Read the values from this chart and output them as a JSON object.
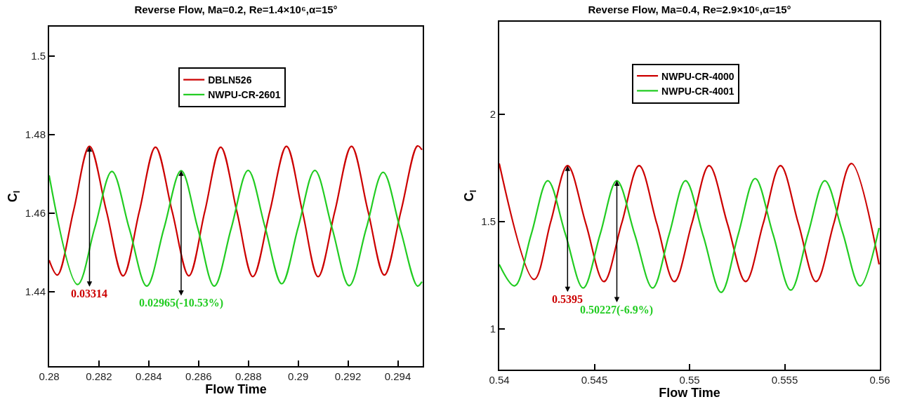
{
  "chart_data": [
    {
      "type": "line",
      "title": "Reverse Flow, Ma=0.2, Re=1.4×10⁶,α=15°",
      "xlabel": "Flow Time",
      "ylabel": "C$_{l}$",
      "legend": "top",
      "grid": false,
      "line_style": "solid",
      "marker": "none",
      "xlim": [
        0.28,
        0.295
      ],
      "xticks": [
        0.28,
        0.282,
        0.284,
        0.286,
        0.288,
        0.29,
        0.292,
        0.294
      ],
      "ylim": [
        1.421,
        1.5075
      ],
      "yticks": [
        1.44,
        1.46,
        1.48,
        1.5
      ],
      "series": [
        {
          "name": "DBLN526",
          "color": "#cc0000",
          "x": [
            0.28,
            0.28033,
            0.28098,
            0.28162,
            0.2823,
            0.28297,
            0.28362,
            0.28427,
            0.28494,
            0.28561,
            0.28625,
            0.28689,
            0.28754,
            0.28818,
            0.28886,
            0.28953,
            0.29017,
            0.2908,
            0.29147,
            0.29214,
            0.2928,
            0.29346,
            0.29413,
            0.29479,
            0.29497
          ],
          "values": [
            1.448,
            1.4442,
            1.4606,
            1.477,
            1.4605,
            1.444,
            1.4604,
            1.4768,
            1.4604,
            1.444,
            1.4604,
            1.4768,
            1.4603,
            1.4438,
            1.4604,
            1.477,
            1.4604,
            1.4438,
            1.4604,
            1.477,
            1.4606,
            1.4442,
            1.4606,
            1.4771,
            1.4761
          ]
        },
        {
          "name": "NWPU-CR-2601",
          "color": "#22cc22",
          "x": [
            0.28,
            0.28114,
            0.28183,
            0.28252,
            0.28322,
            0.28392,
            0.28461,
            0.2853,
            0.28597,
            0.28663,
            0.28731,
            0.28799,
            0.28867,
            0.28934,
            0.29,
            0.29067,
            0.29136,
            0.29205,
            0.29273,
            0.29341,
            0.2941,
            0.29479,
            0.29497
          ],
          "values": [
            1.4696,
            1.4418,
            1.4562,
            1.4706,
            1.456,
            1.4414,
            1.4561,
            1.4708,
            1.4561,
            1.4414,
            1.4561,
            1.4709,
            1.4564,
            1.442,
            1.4564,
            1.4709,
            1.4562,
            1.4415,
            1.456,
            1.4704,
            1.4559,
            1.4414,
            1.4425
          ]
        }
      ],
      "annotations": [
        {
          "text": "0.03314",
          "x": 0.28162,
          "y": 1.477
        },
        {
          "text": "0.02965(-10.53%)",
          "x": 0.2853,
          "y": 1.4708
        }
      ]
    },
    {
      "type": "line",
      "title": "Reverse Flow, Ma=0.4, Re=2.9×10⁶,α=15°",
      "xlabel": "Flow Time",
      "ylabel": "C$_{l}$",
      "legend": "top",
      "grid": false,
      "line_style": "solid",
      "marker": "none",
      "xlim": [
        0.54,
        0.56
      ],
      "xticks": [
        0.54,
        0.545,
        0.55,
        0.555,
        0.56
      ],
      "ylim": [
        0.81,
        2.43
      ],
      "yticks": [
        1,
        1.5,
        2
      ],
      "series": [
        {
          "name": "NWPU-CR-4000",
          "color": "#cc0000",
          "x": [
            0.54,
            0.54183,
            0.54271,
            0.54359,
            0.54455,
            0.5455,
            0.54643,
            0.54735,
            0.54828,
            0.5492,
            0.55012,
            0.55103,
            0.55199,
            0.55295,
            0.55387,
            0.55478,
            0.55572,
            0.55665,
            0.55758,
            0.55851,
            0.55996
          ],
          "values": [
            1.77,
            1.23,
            1.5,
            1.76,
            1.49,
            1.22,
            1.49,
            1.76,
            1.49,
            1.22,
            1.49,
            1.76,
            1.49,
            1.22,
            1.49,
            1.76,
            1.49,
            1.22,
            1.49,
            1.77,
            1.3
          ]
        },
        {
          "name": "NWPU-CR-4001",
          "color": "#22cc22",
          "x": [
            0.54,
            0.54081,
            0.54168,
            0.54255,
            0.54348,
            0.54441,
            0.5453,
            0.54618,
            0.54712,
            0.54806,
            0.54893,
            0.54979,
            0.55073,
            0.55166,
            0.55256,
            0.55345,
            0.55439,
            0.55532,
            0.55622,
            0.55711,
            0.55804,
            0.55896,
            0.55996
          ],
          "values": [
            1.3,
            1.2,
            1.44,
            1.69,
            1.44,
            1.19,
            1.44,
            1.69,
            1.44,
            1.19,
            1.44,
            1.69,
            1.43,
            1.17,
            1.44,
            1.7,
            1.44,
            1.18,
            1.44,
            1.69,
            1.45,
            1.2,
            1.47
          ]
        }
      ],
      "annotations": [
        {
          "text": "0.5395",
          "x": 0.54359,
          "y": 1.76
        },
        {
          "text": "0.50227(-6.9%)",
          "x": 0.54618,
          "y": 1.69
        }
      ]
    }
  ]
}
